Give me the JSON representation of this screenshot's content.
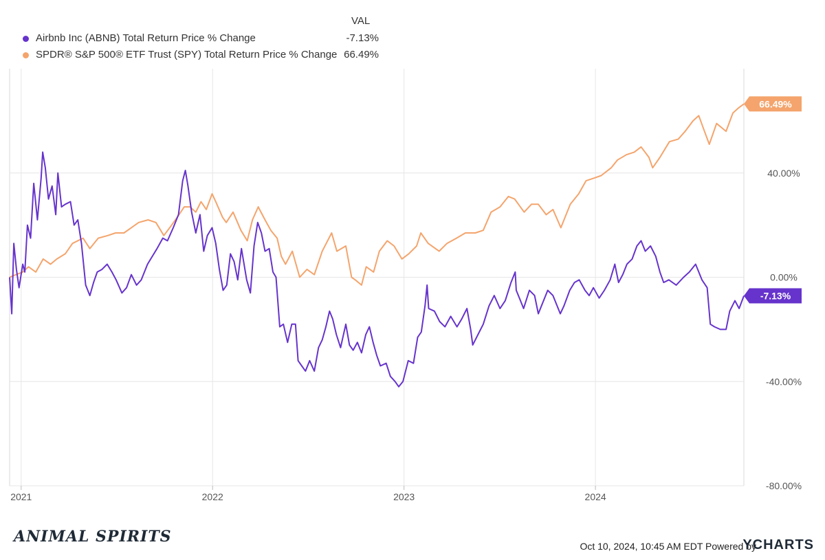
{
  "legend": {
    "value_header": "VAL",
    "series": [
      {
        "name": "Airbnb Inc (ABNB) Total Return Price % Change",
        "value": "-7.13%",
        "color": "#6633cc"
      },
      {
        "name": "SPDR® S&P 500® ETF Trust (SPY) Total Return Price % Change",
        "value": "66.49%",
        "color": "#f4a46c"
      }
    ]
  },
  "footer": {
    "logo_text": "ANIMAL SPIRITS",
    "timestamp": "Oct 10, 2024, 10:45 AM EDT Powered by",
    "brand": "YCHARTS"
  },
  "chart_data": {
    "type": "line",
    "ylim": [
      -80,
      80
    ],
    "yticks": [
      40,
      0,
      -40,
      -80
    ],
    "ytick_labels": [
      "40.00%",
      "0.00%",
      "-40.00%",
      "-80.00%"
    ],
    "xticks": [
      "2021",
      "2022",
      "2023",
      "2024"
    ],
    "x_range": [
      "2020-12-10",
      "2024-10-10"
    ],
    "grid": true,
    "series": [
      {
        "name": "Airbnb Inc (ABNB) Total Return Price % Change",
        "color": "#6633cc",
        "end_label": "-7.13%",
        "points": [
          [
            "2020-12-10",
            0
          ],
          [
            "2020-12-14",
            -14
          ],
          [
            "2020-12-18",
            13
          ],
          [
            "2020-12-23",
            3
          ],
          [
            "2020-12-28",
            -4
          ],
          [
            "2021-01-04",
            5
          ],
          [
            "2021-01-08",
            2
          ],
          [
            "2021-01-13",
            20
          ],
          [
            "2021-01-19",
            15
          ],
          [
            "2021-01-25",
            36
          ],
          [
            "2021-02-01",
            22
          ],
          [
            "2021-02-08",
            38
          ],
          [
            "2021-02-11",
            48
          ],
          [
            "2021-02-16",
            42
          ],
          [
            "2021-02-22",
            30
          ],
          [
            "2021-03-01",
            35
          ],
          [
            "2021-03-08",
            24
          ],
          [
            "2021-03-12",
            40
          ],
          [
            "2021-03-19",
            27
          ],
          [
            "2021-03-26",
            28
          ],
          [
            "2021-04-05",
            29
          ],
          [
            "2021-04-12",
            20
          ],
          [
            "2021-04-19",
            22
          ],
          [
            "2021-04-26",
            13
          ],
          [
            "2021-05-04",
            -3
          ],
          [
            "2021-05-12",
            -7
          ],
          [
            "2021-05-19",
            -2
          ],
          [
            "2021-05-26",
            2
          ],
          [
            "2021-06-04",
            3
          ],
          [
            "2021-06-14",
            5
          ],
          [
            "2021-06-23",
            2
          ],
          [
            "2021-07-01",
            -1
          ],
          [
            "2021-07-12",
            -6
          ],
          [
            "2021-07-21",
            -4
          ],
          [
            "2021-07-30",
            1
          ],
          [
            "2021-08-09",
            -3
          ],
          [
            "2021-08-18",
            -1
          ],
          [
            "2021-08-30",
            5
          ],
          [
            "2021-09-08",
            8
          ],
          [
            "2021-09-17",
            11
          ],
          [
            "2021-09-28",
            15
          ],
          [
            "2021-10-07",
            14
          ],
          [
            "2021-10-18",
            19
          ],
          [
            "2021-10-28",
            24
          ],
          [
            "2021-11-05",
            37
          ],
          [
            "2021-11-10",
            41
          ],
          [
            "2021-11-15",
            35
          ],
          [
            "2021-11-22",
            25
          ],
          [
            "2021-11-30",
            17
          ],
          [
            "2021-12-08",
            24
          ],
          [
            "2021-12-15",
            10
          ],
          [
            "2021-12-22",
            16
          ],
          [
            "2021-12-31",
            19
          ],
          [
            "2022-01-07",
            13
          ],
          [
            "2022-01-14",
            3
          ],
          [
            "2022-01-21",
            -5
          ],
          [
            "2022-01-28",
            -3
          ],
          [
            "2022-02-04",
            9
          ],
          [
            "2022-02-11",
            6
          ],
          [
            "2022-02-18",
            -1
          ],
          [
            "2022-02-25",
            11
          ],
          [
            "2022-03-07",
            -1
          ],
          [
            "2022-03-14",
            -6
          ],
          [
            "2022-03-21",
            12
          ],
          [
            "2022-03-28",
            21
          ],
          [
            "2022-04-04",
            17
          ],
          [
            "2022-04-11",
            10
          ],
          [
            "2022-04-19",
            11
          ],
          [
            "2022-04-26",
            2
          ],
          [
            "2022-05-02",
            0
          ],
          [
            "2022-05-09",
            -19
          ],
          [
            "2022-05-16",
            -18
          ],
          [
            "2022-05-24",
            -25
          ],
          [
            "2022-06-01",
            -18
          ],
          [
            "2022-06-08",
            -18
          ],
          [
            "2022-06-13",
            -32
          ],
          [
            "2022-06-20",
            -34
          ],
          [
            "2022-06-27",
            -36
          ],
          [
            "2022-07-05",
            -32
          ],
          [
            "2022-07-14",
            -36
          ],
          [
            "2022-07-22",
            -27
          ],
          [
            "2022-07-29",
            -24
          ],
          [
            "2022-08-05",
            -19
          ],
          [
            "2022-08-12",
            -13
          ],
          [
            "2022-08-18",
            -16
          ],
          [
            "2022-08-25",
            -22
          ],
          [
            "2022-09-02",
            -27
          ],
          [
            "2022-09-12",
            -18
          ],
          [
            "2022-09-19",
            -26
          ],
          [
            "2022-09-26",
            -28
          ],
          [
            "2022-10-04",
            -25
          ],
          [
            "2022-10-12",
            -29
          ],
          [
            "2022-10-20",
            -22
          ],
          [
            "2022-10-27",
            -19
          ],
          [
            "2022-11-03",
            -25
          ],
          [
            "2022-11-10",
            -30
          ],
          [
            "2022-11-17",
            -34
          ],
          [
            "2022-11-28",
            -33
          ],
          [
            "2022-12-06",
            -38
          ],
          [
            "2022-12-15",
            -40
          ],
          [
            "2022-12-22",
            -42
          ],
          [
            "2022-12-30",
            -40
          ],
          [
            "2023-01-09",
            -32
          ],
          [
            "2023-01-19",
            -33
          ],
          [
            "2023-01-27",
            -23
          ],
          [
            "2023-02-03",
            -21
          ],
          [
            "2023-02-10",
            -11
          ],
          [
            "2023-02-14",
            -3
          ],
          [
            "2023-02-17",
            -12
          ],
          [
            "2023-02-28",
            -13
          ],
          [
            "2023-03-10",
            -17
          ],
          [
            "2023-03-20",
            -19
          ],
          [
            "2023-03-31",
            -15
          ],
          [
            "2023-04-12",
            -19
          ],
          [
            "2023-04-21",
            -16
          ],
          [
            "2023-05-01",
            -12
          ],
          [
            "2023-05-08",
            -20
          ],
          [
            "2023-05-12",
            -26
          ],
          [
            "2023-05-22",
            -22
          ],
          [
            "2023-06-01",
            -18
          ],
          [
            "2023-06-12",
            -11
          ],
          [
            "2023-06-22",
            -7
          ],
          [
            "2023-07-03",
            -12
          ],
          [
            "2023-07-13",
            -9
          ],
          [
            "2023-07-24",
            -2
          ],
          [
            "2023-08-01",
            2
          ],
          [
            "2023-08-03",
            -5
          ],
          [
            "2023-08-09",
            -8
          ],
          [
            "2023-08-17",
            -12
          ],
          [
            "2023-08-28",
            -5
          ],
          [
            "2023-09-07",
            -7
          ],
          [
            "2023-09-14",
            -14
          ],
          [
            "2023-09-22",
            -10
          ],
          [
            "2023-10-02",
            -5
          ],
          [
            "2023-10-12",
            -7
          ],
          [
            "2023-10-26",
            -14
          ],
          [
            "2023-11-02",
            -11
          ],
          [
            "2023-11-13",
            -5
          ],
          [
            "2023-11-22",
            -2
          ],
          [
            "2023-12-01",
            -1
          ],
          [
            "2023-12-12",
            -5
          ],
          [
            "2023-12-20",
            -7
          ],
          [
            "2023-12-28",
            -4
          ],
          [
            "2024-01-08",
            -8
          ],
          [
            "2024-01-18",
            -5
          ],
          [
            "2024-01-29",
            -1
          ],
          [
            "2024-02-07",
            5
          ],
          [
            "2024-02-14",
            -2
          ],
          [
            "2024-02-22",
            1
          ],
          [
            "2024-03-01",
            5
          ],
          [
            "2024-03-11",
            7
          ],
          [
            "2024-03-20",
            12
          ],
          [
            "2024-03-28",
            14
          ],
          [
            "2024-04-05",
            10
          ],
          [
            "2024-04-15",
            12
          ],
          [
            "2024-04-25",
            8
          ],
          [
            "2024-05-03",
            2
          ],
          [
            "2024-05-10",
            -2
          ],
          [
            "2024-05-20",
            -1
          ],
          [
            "2024-06-03",
            -3
          ],
          [
            "2024-06-17",
            0
          ],
          [
            "2024-06-28",
            2
          ],
          [
            "2024-07-10",
            5
          ],
          [
            "2024-07-22",
            -1
          ],
          [
            "2024-08-01",
            -4
          ],
          [
            "2024-08-07",
            -18
          ],
          [
            "2024-08-15",
            -19
          ],
          [
            "2024-08-26",
            -20
          ],
          [
            "2024-09-06",
            -20
          ],
          [
            "2024-09-13",
            -13
          ],
          [
            "2024-09-23",
            -9
          ],
          [
            "2024-10-01",
            -12
          ],
          [
            "2024-10-10",
            -7.13
          ]
        ]
      },
      {
        "name": "SPDR® S&P 500® ETF Trust (SPY) Total Return Price % Change",
        "color": "#f4a46c",
        "end_label": "66.49%",
        "points": [
          [
            "2020-12-10",
            0
          ],
          [
            "2020-12-22",
            1
          ],
          [
            "2021-01-04",
            2
          ],
          [
            "2021-01-15",
            4
          ],
          [
            "2021-01-29",
            2
          ],
          [
            "2021-02-12",
            7
          ],
          [
            "2021-02-26",
            5
          ],
          [
            "2021-03-10",
            7
          ],
          [
            "2021-03-26",
            9
          ],
          [
            "2021-04-09",
            13
          ],
          [
            "2021-04-29",
            15
          ],
          [
            "2021-05-12",
            11
          ],
          [
            "2021-05-28",
            15
          ],
          [
            "2021-06-15",
            16
          ],
          [
            "2021-06-30",
            17
          ],
          [
            "2021-07-16",
            17
          ],
          [
            "2021-07-30",
            19
          ],
          [
            "2021-08-13",
            21
          ],
          [
            "2021-08-31",
            22
          ],
          [
            "2021-09-15",
            21
          ],
          [
            "2021-09-30",
            16
          ],
          [
            "2021-10-15",
            20
          ],
          [
            "2021-10-29",
            24
          ],
          [
            "2021-11-08",
            27
          ],
          [
            "2021-11-19",
            27
          ],
          [
            "2021-11-30",
            25
          ],
          [
            "2021-12-10",
            29
          ],
          [
            "2021-12-20",
            26
          ],
          [
            "2021-12-31",
            32
          ],
          [
            "2022-01-07",
            29
          ],
          [
            "2022-01-20",
            23
          ],
          [
            "2022-01-27",
            21
          ],
          [
            "2022-02-09",
            25
          ],
          [
            "2022-02-24",
            18
          ],
          [
            "2022-03-08",
            14
          ],
          [
            "2022-03-18",
            22
          ],
          [
            "2022-03-29",
            27
          ],
          [
            "2022-04-11",
            22
          ],
          [
            "2022-04-22",
            18
          ],
          [
            "2022-05-04",
            15
          ],
          [
            "2022-05-12",
            8
          ],
          [
            "2022-05-20",
            5
          ],
          [
            "2022-06-02",
            10
          ],
          [
            "2022-06-16",
            0
          ],
          [
            "2022-06-30",
            3
          ],
          [
            "2022-07-14",
            1
          ],
          [
            "2022-07-29",
            10
          ],
          [
            "2022-08-16",
            17
          ],
          [
            "2022-08-26",
            10
          ],
          [
            "2022-09-12",
            12
          ],
          [
            "2022-09-23",
            0
          ],
          [
            "2022-09-30",
            -1
          ],
          [
            "2022-10-12",
            -3
          ],
          [
            "2022-10-21",
            4
          ],
          [
            "2022-11-04",
            2
          ],
          [
            "2022-11-15",
            10
          ],
          [
            "2022-11-30",
            14
          ],
          [
            "2022-12-13",
            12
          ],
          [
            "2022-12-28",
            7
          ],
          [
            "2023-01-10",
            9
          ],
          [
            "2023-01-25",
            12
          ],
          [
            "2023-02-02",
            17
          ],
          [
            "2023-02-16",
            13
          ],
          [
            "2023-03-09",
            10
          ],
          [
            "2023-03-24",
            13
          ],
          [
            "2023-04-11",
            15
          ],
          [
            "2023-04-28",
            17
          ],
          [
            "2023-05-17",
            17
          ],
          [
            "2023-06-01",
            18
          ],
          [
            "2023-06-16",
            25
          ],
          [
            "2023-07-03",
            27
          ],
          [
            "2023-07-19",
            31
          ],
          [
            "2023-07-31",
            30
          ],
          [
            "2023-08-18",
            25
          ],
          [
            "2023-09-01",
            28
          ],
          [
            "2023-09-14",
            28
          ],
          [
            "2023-09-29",
            24
          ],
          [
            "2023-10-12",
            26
          ],
          [
            "2023-10-27",
            19
          ],
          [
            "2023-11-14",
            28
          ],
          [
            "2023-11-30",
            32
          ],
          [
            "2023-12-14",
            37
          ],
          [
            "2023-12-29",
            38
          ],
          [
            "2024-01-12",
            39
          ],
          [
            "2024-01-31",
            42
          ],
          [
            "2024-02-12",
            45
          ],
          [
            "2024-02-29",
            47
          ],
          [
            "2024-03-15",
            48
          ],
          [
            "2024-03-28",
            50
          ],
          [
            "2024-04-12",
            46
          ],
          [
            "2024-04-19",
            42
          ],
          [
            "2024-05-03",
            46
          ],
          [
            "2024-05-21",
            52
          ],
          [
            "2024-06-07",
            53
          ],
          [
            "2024-06-20",
            56
          ],
          [
            "2024-07-05",
            60
          ],
          [
            "2024-07-16",
            62
          ],
          [
            "2024-07-25",
            57
          ],
          [
            "2024-08-05",
            51
          ],
          [
            "2024-08-19",
            59
          ],
          [
            "2024-09-06",
            56
          ],
          [
            "2024-09-19",
            63
          ],
          [
            "2024-09-30",
            65
          ],
          [
            "2024-10-10",
            66.49
          ]
        ]
      }
    ]
  }
}
